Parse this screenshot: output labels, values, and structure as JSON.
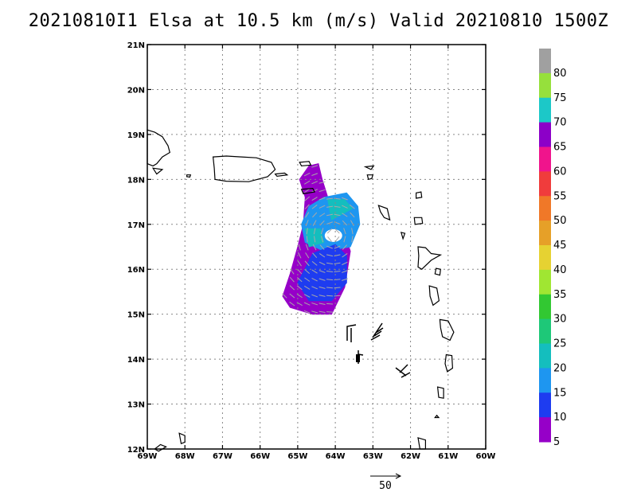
{
  "title": "20210810I1 Elsa at 10.5 km (m/s) Valid 20210810 1500Z",
  "map": {
    "lon_range": [
      -69,
      -60
    ],
    "lat_range": [
      12,
      21
    ],
    "lon_ticks": [
      "69W",
      "68W",
      "67W",
      "66W",
      "65W",
      "64W",
      "63W",
      "62W",
      "61W",
      "60W"
    ],
    "lat_ticks": [
      "21N",
      "20N",
      "19N",
      "18N",
      "17N",
      "16N",
      "15N",
      "14N",
      "13N",
      "12N"
    ],
    "grid": "dotted"
  },
  "colorbar": {
    "labels": [
      "80",
      "75",
      "70",
      "65",
      "60",
      "55",
      "50",
      "45",
      "40",
      "35",
      "30",
      "25",
      "20",
      "15",
      "10",
      "5"
    ],
    "colors": [
      "#a0a0a0",
      "#96e03c",
      "#1cc8c8",
      "#8c00c8",
      "#f0148c",
      "#f03c3c",
      "#f07828",
      "#e6a028",
      "#e6d232",
      "#a0e632",
      "#32c832",
      "#1ec878",
      "#14bebe",
      "#1e96f0",
      "#1e3cf0",
      "#9600c8"
    ]
  },
  "reference_vector": {
    "label": "50"
  },
  "colors": {
    "vector": "#a8a8a8",
    "coast": "#000000"
  }
}
